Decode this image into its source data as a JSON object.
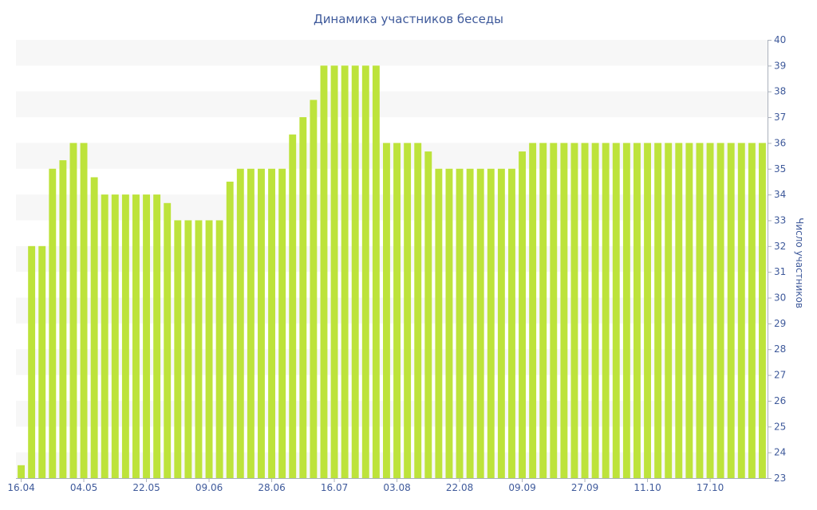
{
  "chart_data": {
    "type": "bar",
    "title": "Динамика участников беседы",
    "ylabel": "Число участников",
    "xlabel": "",
    "ylim": [
      23,
      40
    ],
    "yticks": [
      23,
      24,
      25,
      26,
      27,
      28,
      29,
      30,
      31,
      32,
      33,
      34,
      35,
      36,
      37,
      38,
      39,
      40
    ],
    "y_axis_side": "right",
    "grid": "alternating horizontal bands",
    "legend": "none",
    "colors": {
      "bar": "#bde33b",
      "text": "#3f5a9b",
      "band": "#f7f7f7",
      "axis": "#aab0bb"
    },
    "x_tick_labels": [
      {
        "label": "16.04",
        "index": 0
      },
      {
        "label": "04.05",
        "index": 6
      },
      {
        "label": "22.05",
        "index": 12
      },
      {
        "label": "09.06",
        "index": 18
      },
      {
        "label": "28.06",
        "index": 24
      },
      {
        "label": "16.07",
        "index": 30
      },
      {
        "label": "03.08",
        "index": 36
      },
      {
        "label": "22.08",
        "index": 42
      },
      {
        "label": "09.09",
        "index": 48
      },
      {
        "label": "27.09",
        "index": 54
      },
      {
        "label": "11.10",
        "index": 60
      },
      {
        "label": "17.10",
        "index": 66
      }
    ],
    "values": [
      23.5,
      32,
      32,
      35,
      35.33,
      36,
      36,
      34.67,
      34,
      34,
      34,
      34,
      34,
      34,
      33.67,
      33,
      33,
      33,
      33,
      33,
      34.5,
      35,
      35,
      35,
      35,
      35,
      36.33,
      37,
      37.67,
      39,
      39,
      39,
      39,
      39,
      39,
      36,
      36,
      36,
      36,
      35.67,
      35,
      35,
      35,
      35,
      35,
      35,
      35,
      35,
      35.67,
      36,
      36,
      36,
      36,
      36,
      36,
      36,
      36,
      36,
      36,
      36,
      36,
      36,
      36,
      36,
      36,
      36,
      36,
      36,
      36,
      36,
      36,
      36
    ]
  }
}
